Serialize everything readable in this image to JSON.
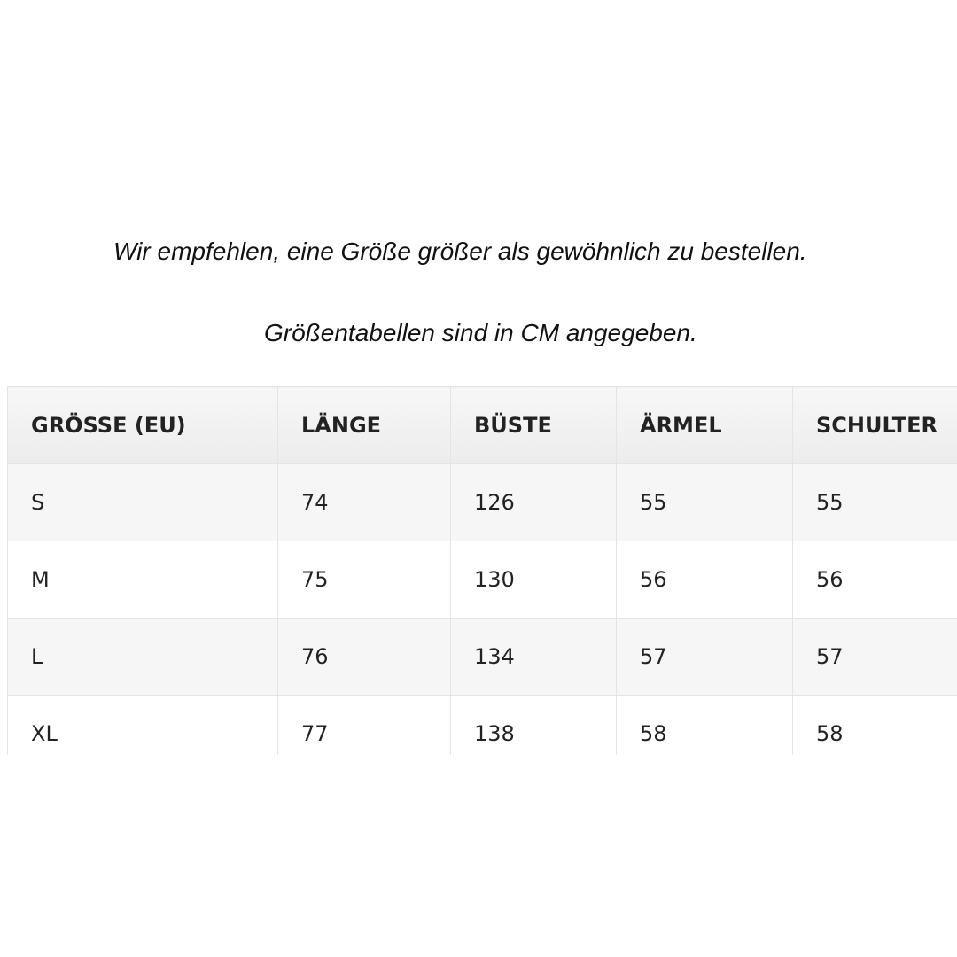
{
  "notes": [
    "Wir empfehlen, eine Größe größer als gewöhnlich zu bestellen.",
    "Größentabellen sind in CM angegeben."
  ],
  "table": {
    "header": [
      "GRÖSSE (EU)",
      "LÄNGE",
      "BÜSTE",
      "ÄRMEL",
      "SCHULTER"
    ],
    "rows": [
      [
        "S",
        "74",
        "126",
        "55",
        "55"
      ],
      [
        "M",
        "75",
        "130",
        "56",
        "56"
      ],
      [
        "L",
        "76",
        "134",
        "57",
        "57"
      ],
      [
        "XL",
        "77",
        "138",
        "58",
        "58"
      ]
    ]
  }
}
